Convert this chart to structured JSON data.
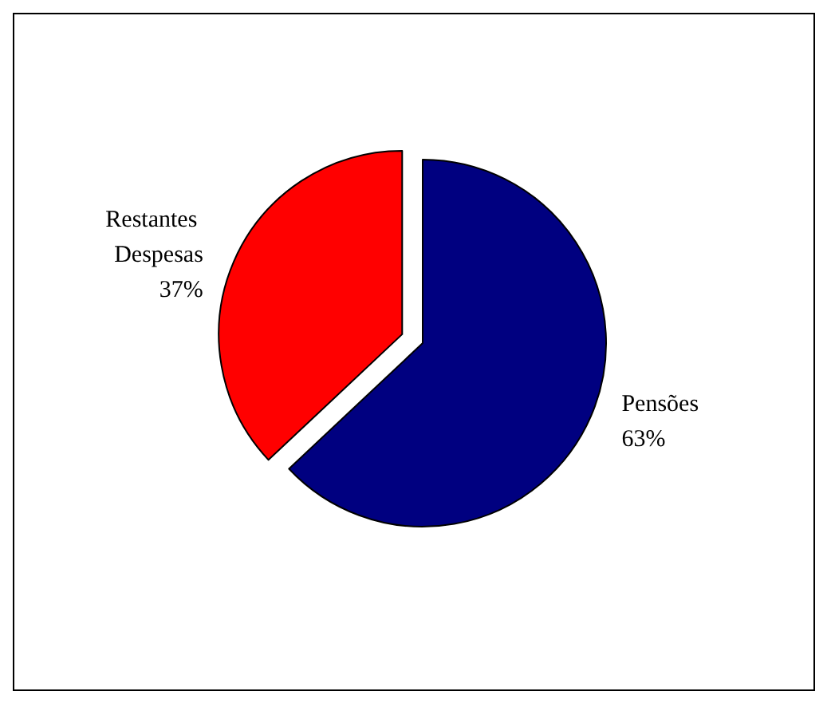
{
  "chart_data": {
    "type": "pie",
    "categories": [
      "Pensões",
      "Restantes Despesas"
    ],
    "values": [
      63,
      37
    ],
    "colors": [
      "#000080",
      "#ff0000"
    ],
    "value_labels": [
      "63%",
      "37%"
    ]
  }
}
